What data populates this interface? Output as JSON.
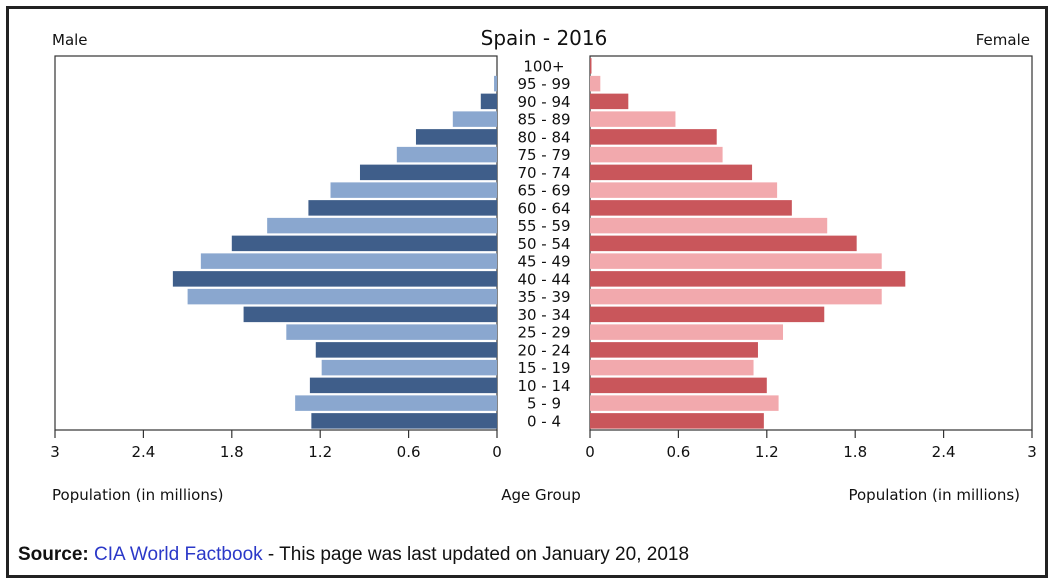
{
  "chart_data": {
    "type": "bar",
    "title": "Spain - 2016",
    "left_label": "Male",
    "right_label": "Female",
    "xlabel_left": "Population (in millions)",
    "xlabel_center": "Age Group",
    "xlabel_right": "Population (in millions)",
    "xlim": [
      0,
      3
    ],
    "ticks": [
      "3",
      "2.4",
      "1.8",
      "1.2",
      "0.6",
      "0"
    ],
    "ticks_right": [
      "0",
      "0.6",
      "1.2",
      "1.8",
      "2.4",
      "3"
    ],
    "categories": [
      "100+",
      "95 - 99",
      "90 - 94",
      "85 - 89",
      "80 - 84",
      "75 - 79",
      "70 - 74",
      "65 - 69",
      "60 - 64",
      "55 - 59",
      "50 - 54",
      "45 - 49",
      "40 - 44",
      "35 - 39",
      "30 - 34",
      "25 - 29",
      "20 - 24",
      "15 - 19",
      "10 - 14",
      "5 - 9",
      "0 - 4"
    ],
    "series": [
      {
        "name": "Male",
        "values": [
          0.0,
          0.02,
          0.11,
          0.3,
          0.55,
          0.68,
          0.93,
          1.13,
          1.28,
          1.56,
          1.8,
          2.01,
          2.2,
          2.1,
          1.72,
          1.43,
          1.23,
          1.19,
          1.27,
          1.37,
          1.26
        ]
      },
      {
        "name": "Female",
        "values": [
          0.01,
          0.07,
          0.26,
          0.58,
          0.86,
          0.9,
          1.1,
          1.27,
          1.37,
          1.61,
          1.81,
          1.98,
          2.14,
          1.98,
          1.59,
          1.31,
          1.14,
          1.11,
          1.2,
          1.28,
          1.18
        ]
      }
    ],
    "colors": {
      "male_dark": "#3f5e8a",
      "male_light": "#8aa7cf",
      "female_dark": "#c9565b",
      "female_light": "#f2a9ad"
    }
  },
  "source": {
    "label": "Source:",
    "link": "CIA World Factbook",
    "text": " - This page was last updated on January 20, 2018"
  }
}
